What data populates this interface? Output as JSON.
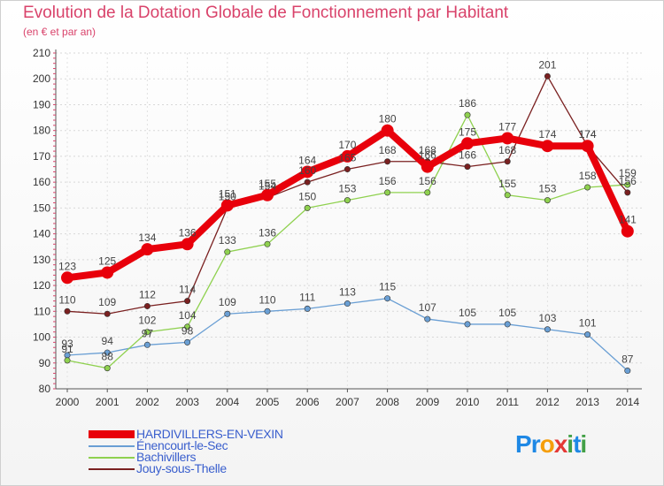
{
  "title": "Evolution de la Dotation Globale de Fonctionnement par Habitant",
  "subtitle": "(en € et par an)",
  "logo": {
    "text": "Proxiti",
    "letters": [
      "P",
      "r",
      "o",
      "x",
      "i",
      "t",
      "i"
    ],
    "colors": [
      "#1e88e5",
      "#1e88e5",
      "#f59e0b",
      "#e53935",
      "#43a047",
      "#1e88e5",
      "#43a047"
    ]
  },
  "chart_data": {
    "type": "line",
    "title": "Evolution de la Dotation Globale de Fonctionnement par Habitant",
    "ylabel": "(en € et par an)",
    "xlabel": "",
    "ylim": [
      80,
      210
    ],
    "yticks": [
      80,
      90,
      100,
      110,
      120,
      130,
      140,
      150,
      160,
      170,
      180,
      190,
      200,
      210
    ],
    "categories": [
      "2000",
      "2001",
      "2002",
      "2003",
      "2004",
      "2005",
      "2006",
      "2007",
      "2008",
      "2009",
      "2010",
      "2011",
      "2012",
      "2013",
      "2014"
    ],
    "grid": true,
    "series": [
      {
        "name": "HARDIVILLERS-EN-VEXIN",
        "color": "#e8000b",
        "emphasis": true,
        "values": [
          123,
          125,
          134,
          136,
          151,
          155,
          164,
          170,
          180,
          166,
          175,
          177,
          174,
          174,
          141
        ],
        "labels": [
          "123",
          "125",
          "134",
          "136",
          "151",
          "155",
          "164",
          "170",
          "180",
          "166",
          "175",
          "177",
          "174",
          "174",
          "141"
        ]
      },
      {
        "name": "Énencourt-le-Sec",
        "color": "#6a9fd4",
        "emphasis": false,
        "values": [
          93,
          94,
          97,
          98,
          109,
          110,
          111,
          113,
          115,
          107,
          105,
          105,
          103,
          101,
          87
        ],
        "labels": [
          "93",
          "94",
          "97",
          "98",
          "109",
          "110",
          "111",
          "113",
          "115",
          "107",
          "105",
          "105",
          "103",
          "101",
          "87"
        ]
      },
      {
        "name": "Bachivillers",
        "color": "#8fd14f",
        "emphasis": false,
        "values": [
          91,
          88,
          102,
          104,
          133,
          136,
          150,
          153,
          156,
          156,
          186,
          155,
          153,
          158,
          159
        ],
        "labels": [
          "91",
          "88",
          "102",
          "104",
          "133",
          "136",
          "150",
          "153",
          "156",
          "156",
          "186",
          "155",
          "153",
          "158",
          "159"
        ]
      },
      {
        "name": "Jouy-sous-Thelle",
        "color": "#7a2020",
        "emphasis": false,
        "values": [
          110,
          109,
          112,
          114,
          150,
          154,
          160,
          165,
          168,
          168,
          166,
          168,
          201,
          174,
          156
        ],
        "labels": [
          "110",
          "109",
          "112",
          "114",
          "150",
          "154",
          "160",
          "165",
          "168",
          "168",
          "166",
          "168",
          "201",
          "174",
          "156"
        ]
      }
    ]
  }
}
